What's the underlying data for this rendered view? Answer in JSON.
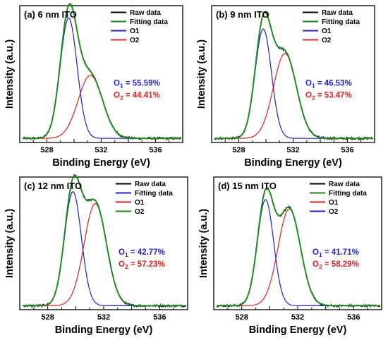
{
  "figure": {
    "colors": {
      "raw": "#000000",
      "fit": "#1a8a1a",
      "o1": "#1f1fe0",
      "o2": "#e01f1f"
    },
    "legend_labels": [
      "Raw data",
      "Fitting data",
      "O1",
      "O2"
    ]
  },
  "chart_data": [
    {
      "type": "line",
      "title": "(a) 6 nm ITO",
      "xlabel": "Binding Energy (eV)",
      "ylabel": "Intensity (a.u.)",
      "xlim": [
        526,
        538
      ],
      "x_ticks": [
        528,
        532,
        536
      ],
      "y_ticks_labeled": false,
      "legend": [
        "Raw data",
        "Fitting data",
        "O1",
        "O2"
      ],
      "legend_colors": [
        "#000000",
        "#1a8a1a",
        "#1f1fe0",
        "#e01f1f"
      ],
      "peaks": {
        "O1": {
          "center": 529.6,
          "amplitude": 0.88,
          "width": 0.62
        },
        "O2": {
          "center": 531.2,
          "amplitude": 0.46,
          "width": 0.9
        }
      },
      "baseline": 0.03,
      "annotations": {
        "o1": "O₁ = 55.59%",
        "o2": "O₂ = 44.41%"
      }
    },
    {
      "type": "line",
      "title": "(b) 9 nm ITO",
      "xlabel": "Binding Energy (eV)",
      "ylabel": "Intensity (a.u.)",
      "xlim": [
        526,
        538
      ],
      "x_ticks": [
        528,
        532,
        536
      ],
      "y_ticks_labeled": false,
      "legend": [
        "Raw data",
        "Fitting data",
        "O1",
        "O2"
      ],
      "legend_colors": [
        "#000000",
        "#1a8a1a",
        "#1f1fe0",
        "#e01f1f"
      ],
      "peaks": {
        "O1": {
          "center": 529.8,
          "amplitude": 0.8,
          "width": 0.6
        },
        "O2": {
          "center": 531.4,
          "amplitude": 0.62,
          "width": 0.85
        }
      },
      "baseline": 0.03,
      "annotations": {
        "o1": "O₁ = 46.53%",
        "o2": "O₂ = 53.47%"
      }
    },
    {
      "type": "line",
      "title": "(c) 12 nm ITO",
      "xlabel": "Binding Energy (eV)",
      "ylabel": "Intensity (a.u.)",
      "xlim": [
        526,
        538
      ],
      "x_ticks": [
        528,
        532,
        536
      ],
      "y_ticks_labeled": false,
      "legend": [
        "Raw data",
        "Fitting data",
        "O1",
        "O2"
      ],
      "legend_colors": [
        "#000000",
        "#1f1fe0",
        "#e01f1f",
        "#1a8a1a"
      ],
      "peaks": {
        "O1": {
          "center": 529.8,
          "amplitude": 0.86,
          "width": 0.6
        },
        "O2": {
          "center": 531.4,
          "amplitude": 0.77,
          "width": 0.8
        }
      },
      "baseline": 0.03,
      "annotations": {
        "o1": "O₁ = 42.77%",
        "o2": "O₂ = 57.23%"
      }
    },
    {
      "type": "line",
      "title": "(d) 15 nm ITO",
      "xlabel": "Binding Energy (eV)",
      "ylabel": "Intensity (a.u.)",
      "xlim": [
        526,
        538
      ],
      "x_ticks": [
        528,
        532,
        536
      ],
      "y_ticks_labeled": false,
      "legend": [
        "Raw data",
        "Fitting data",
        "O1",
        "O2"
      ],
      "legend_colors": [
        "#000000",
        "#1a8a1a",
        "#e01f1f",
        "#1f1fe0"
      ],
      "peaks": {
        "O1": {
          "center": 529.7,
          "amplitude": 0.8,
          "width": 0.58
        },
        "O2": {
          "center": 531.4,
          "amplitude": 0.73,
          "width": 0.8
        }
      },
      "baseline": 0.03,
      "annotations": {
        "o1": "O₁ = 41.71%",
        "o2": "O₂ = 58.29%"
      }
    }
  ]
}
